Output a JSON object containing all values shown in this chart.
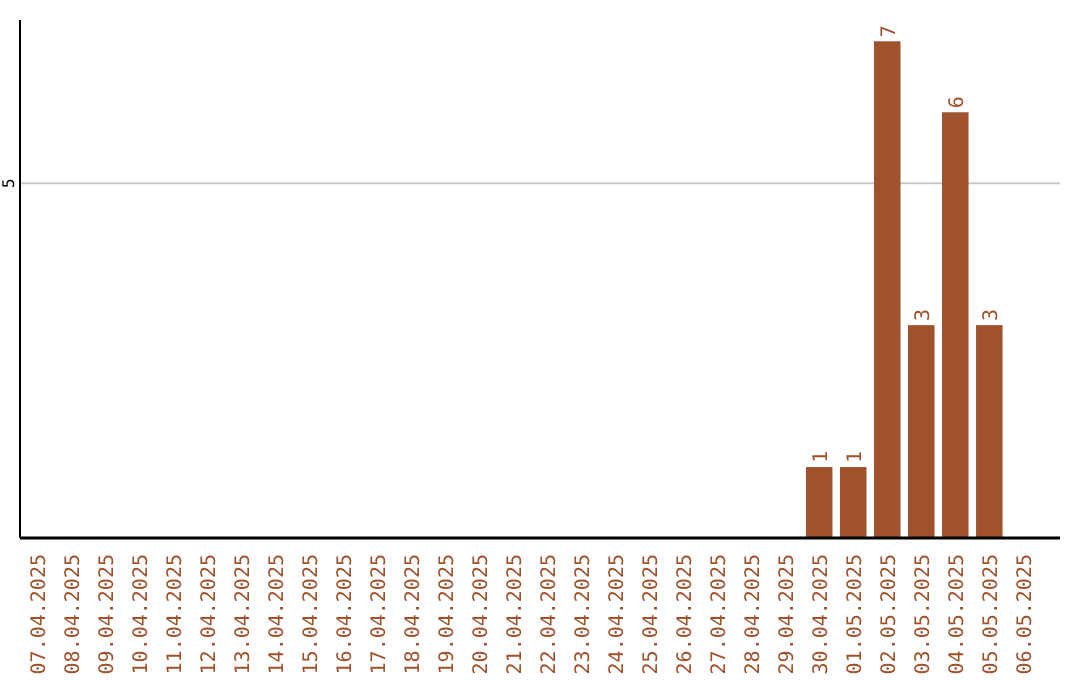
{
  "chart_data": {
    "type": "bar",
    "categories": [
      "07.04.2025",
      "08.04.2025",
      "09.04.2025",
      "10.04.2025",
      "11.04.2025",
      "12.04.2025",
      "13.04.2025",
      "14.04.2025",
      "15.04.2025",
      "16.04.2025",
      "17.04.2025",
      "18.04.2025",
      "19.04.2025",
      "20.04.2025",
      "21.04.2025",
      "22.04.2025",
      "23.04.2025",
      "24.04.2025",
      "25.04.2025",
      "26.04.2025",
      "27.04.2025",
      "28.04.2025",
      "29.04.2025",
      "30.04.2025",
      "01.05.2025",
      "02.05.2025",
      "03.05.2025",
      "04.05.2025",
      "05.05.2025",
      "06.05.2025"
    ],
    "values": [
      null,
      null,
      null,
      null,
      null,
      null,
      null,
      null,
      null,
      null,
      null,
      null,
      null,
      null,
      null,
      null,
      null,
      null,
      null,
      null,
      null,
      null,
      null,
      1,
      1,
      7,
      3,
      6,
      3,
      null
    ],
    "data_labels": true,
    "color": "#a0522d",
    "ylim": [
      0,
      7.3
    ],
    "yticks": [
      {
        "value": 0,
        "label": null
      },
      5
    ],
    "grid": "y"
  }
}
